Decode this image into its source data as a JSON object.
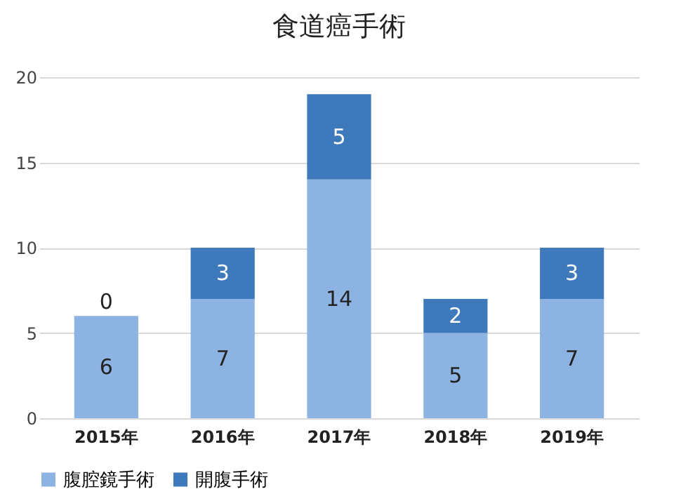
{
  "chart_data": {
    "type": "bar",
    "title": "食道癌手術",
    "categories": [
      "2015年",
      "2016年",
      "2017年",
      "2018年",
      "2019年"
    ],
    "stacked": true,
    "series": [
      {
        "name": "腹腔鏡手術",
        "color": "#8db3e2",
        "values": [
          6,
          7,
          14,
          5,
          7
        ]
      },
      {
        "name": "開腹手術",
        "color": "#3d79bb",
        "values": [
          0,
          3,
          5,
          2,
          3
        ]
      }
    ],
    "ylim": [
      0,
      20
    ],
    "yticks": [
      0,
      5,
      10,
      15,
      20
    ],
    "grid": "y",
    "legend": "bottom",
    "data_labels": true
  }
}
